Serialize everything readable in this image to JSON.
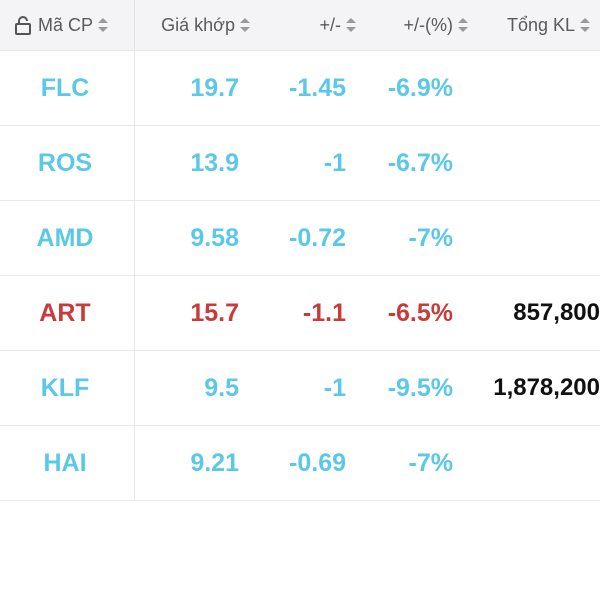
{
  "header": {
    "code": "Mã CP",
    "price": "Giá khớp",
    "change": "+/-",
    "pct": "+/-(%)",
    "volume": "Tổng KL"
  },
  "rows": [
    {
      "code": "FLC",
      "price": "19.7",
      "change": "-1.45",
      "pct": "-6.9%",
      "volume": "",
      "color": "#5bc8e8"
    },
    {
      "code": "ROS",
      "price": "13.9",
      "change": "-1",
      "pct": "-6.7%",
      "volume": "",
      "color": "#5bc8e8"
    },
    {
      "code": "AMD",
      "price": "9.58",
      "change": "-0.72",
      "pct": "-7%",
      "volume": "",
      "color": "#5bc8e8"
    },
    {
      "code": "ART",
      "price": "15.7",
      "change": "-1.1",
      "pct": "-6.5%",
      "volume": "857,800",
      "color": "#c93a3a"
    },
    {
      "code": "KLF",
      "price": "9.5",
      "change": "-1",
      "pct": "-9.5%",
      "volume": "1,878,200",
      "color": "#5bc8e8"
    },
    {
      "code": "HAI",
      "price": "9.21",
      "change": "-0.69",
      "pct": "-7%",
      "volume": "",
      "color": "#5bc8e8"
    }
  ]
}
